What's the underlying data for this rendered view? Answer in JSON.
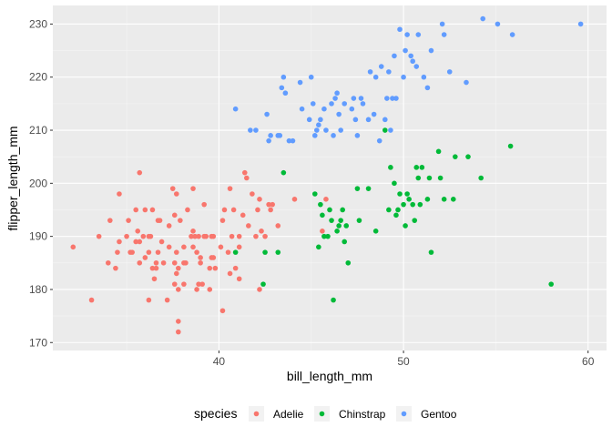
{
  "chart_data": {
    "type": "scatter",
    "xlabel": "bill_length_mm",
    "ylabel": "flipper_length_mm",
    "xlim": [
      31,
      61
    ],
    "ylim": [
      168.5,
      233.5
    ],
    "x_ticks": [
      40,
      50,
      60
    ],
    "y_ticks": [
      170,
      180,
      190,
      200,
      210,
      220,
      230
    ],
    "x_tick_labels": [
      "40",
      "50",
      "60"
    ],
    "y_tick_labels": [
      "170",
      "180",
      "190",
      "200",
      "210",
      "220",
      "230"
    ],
    "grid": true,
    "legend": {
      "title": "species",
      "position": "bottom"
    },
    "series": [
      {
        "name": "Adelie",
        "color": "#F8766D",
        "points": [
          [
            32.1,
            188
          ],
          [
            33.1,
            178
          ],
          [
            33.5,
            190
          ],
          [
            34.0,
            185
          ],
          [
            34.1,
            193
          ],
          [
            34.4,
            184
          ],
          [
            34.5,
            187
          ],
          [
            34.6,
            189
          ],
          [
            34.6,
            198
          ],
          [
            35.0,
            190
          ],
          [
            35.1,
            193
          ],
          [
            35.2,
            187
          ],
          [
            35.3,
            187
          ],
          [
            35.5,
            189
          ],
          [
            35.5,
            195
          ],
          [
            35.6,
            191
          ],
          [
            35.7,
            185
          ],
          [
            35.7,
            189
          ],
          [
            35.7,
            202
          ],
          [
            35.9,
            190
          ],
          [
            36.0,
            186
          ],
          [
            36.0,
            195
          ],
          [
            36.2,
            178
          ],
          [
            36.2,
            187
          ],
          [
            36.2,
            190
          ],
          [
            36.3,
            190
          ],
          [
            36.4,
            184
          ],
          [
            36.4,
            195
          ],
          [
            36.5,
            182
          ],
          [
            36.6,
            184
          ],
          [
            36.6,
            185
          ],
          [
            36.7,
            187
          ],
          [
            36.7,
            193
          ],
          [
            36.8,
            193
          ],
          [
            36.9,
            189
          ],
          [
            37.0,
            185
          ],
          [
            37.2,
            178
          ],
          [
            37.3,
            188
          ],
          [
            37.3,
            192
          ],
          [
            37.5,
            199
          ],
          [
            37.6,
            181
          ],
          [
            37.6,
            185
          ],
          [
            37.6,
            194
          ],
          [
            37.7,
            183
          ],
          [
            37.7,
            187
          ],
          [
            37.7,
            198
          ],
          [
            37.8,
            172
          ],
          [
            37.8,
            174
          ],
          [
            37.8,
            180
          ],
          [
            37.8,
            184
          ],
          [
            37.9,
            193
          ],
          [
            38.1,
            181
          ],
          [
            38.1,
            185
          ],
          [
            38.1,
            188
          ],
          [
            38.2,
            185
          ],
          [
            38.3,
            195
          ],
          [
            38.5,
            190
          ],
          [
            38.6,
            188
          ],
          [
            38.6,
            191
          ],
          [
            38.6,
            199
          ],
          [
            38.7,
            190
          ],
          [
            38.8,
            180
          ],
          [
            38.8,
            187
          ],
          [
            38.9,
            181
          ],
          [
            38.9,
            190
          ],
          [
            39.0,
            185
          ],
          [
            39.0,
            186
          ],
          [
            39.1,
            181
          ],
          [
            39.2,
            190
          ],
          [
            39.2,
            196
          ],
          [
            39.3,
            190
          ],
          [
            39.5,
            180
          ],
          [
            39.5,
            184
          ],
          [
            39.6,
            186
          ],
          [
            39.6,
            190
          ],
          [
            39.7,
            186
          ],
          [
            39.7,
            190
          ],
          [
            39.8,
            184
          ],
          [
            40.1,
            188
          ],
          [
            40.2,
            176
          ],
          [
            40.2,
            193
          ],
          [
            40.3,
            195
          ],
          [
            40.5,
            187
          ],
          [
            40.6,
            183
          ],
          [
            40.6,
            199
          ],
          [
            40.7,
            190
          ],
          [
            40.8,
            195
          ],
          [
            40.9,
            184
          ],
          [
            41.1,
            182
          ],
          [
            41.1,
            188
          ],
          [
            41.1,
            190
          ],
          [
            41.3,
            194
          ],
          [
            41.4,
            202
          ],
          [
            41.5,
            201
          ],
          [
            41.6,
            192
          ],
          [
            41.8,
            198
          ],
          [
            42.0,
            190
          ],
          [
            42.1,
            195
          ],
          [
            42.2,
            180
          ],
          [
            42.2,
            197
          ],
          [
            42.3,
            191
          ],
          [
            42.5,
            190
          ],
          [
            42.7,
            196
          ],
          [
            42.8,
            195
          ],
          [
            42.9,
            196
          ],
          [
            43.2,
            192
          ],
          [
            44.1,
            197
          ],
          [
            45.6,
            191
          ],
          [
            45.8,
            197
          ]
        ]
      },
      {
        "name": "Chinstrap",
        "color": "#00BA38",
        "points": [
          [
            40.9,
            187
          ],
          [
            42.4,
            181
          ],
          [
            42.5,
            187
          ],
          [
            43.2,
            187
          ],
          [
            43.5,
            202
          ],
          [
            45.2,
            198
          ],
          [
            45.4,
            188
          ],
          [
            45.5,
            196
          ],
          [
            45.6,
            194
          ],
          [
            45.7,
            190
          ],
          [
            45.9,
            190
          ],
          [
            46.0,
            195
          ],
          [
            46.1,
            193
          ],
          [
            46.2,
            178
          ],
          [
            46.4,
            191
          ],
          [
            46.5,
            192
          ],
          [
            46.6,
            193
          ],
          [
            46.7,
            195
          ],
          [
            46.8,
            189
          ],
          [
            46.9,
            192
          ],
          [
            47.0,
            185
          ],
          [
            47.5,
            199
          ],
          [
            47.6,
            193
          ],
          [
            48.1,
            199
          ],
          [
            48.5,
            191
          ],
          [
            49.0,
            210
          ],
          [
            49.2,
            195
          ],
          [
            49.3,
            203
          ],
          [
            49.5,
            200
          ],
          [
            49.6,
            194
          ],
          [
            49.7,
            195
          ],
          [
            49.8,
            198
          ],
          [
            50.0,
            196
          ],
          [
            50.1,
            192
          ],
          [
            50.2,
            198
          ],
          [
            50.3,
            197
          ],
          [
            50.5,
            196
          ],
          [
            50.6,
            193
          ],
          [
            50.7,
            203
          ],
          [
            50.8,
            201
          ],
          [
            50.9,
            196
          ],
          [
            51.0,
            203
          ],
          [
            51.3,
            197
          ],
          [
            51.4,
            201
          ],
          [
            51.5,
            187
          ],
          [
            51.9,
            206
          ],
          [
            52.0,
            201
          ],
          [
            52.2,
            197
          ],
          [
            52.7,
            197
          ],
          [
            52.8,
            205
          ],
          [
            53.5,
            205
          ],
          [
            54.2,
            201
          ],
          [
            55.8,
            207
          ],
          [
            58.0,
            181
          ]
        ]
      },
      {
        "name": "Gentoo",
        "color": "#619CFF",
        "points": [
          [
            40.9,
            214
          ],
          [
            41.7,
            210
          ],
          [
            42.0,
            210
          ],
          [
            42.6,
            213
          ],
          [
            42.7,
            208
          ],
          [
            42.8,
            209
          ],
          [
            43.2,
            209
          ],
          [
            43.3,
            209
          ],
          [
            43.4,
            218
          ],
          [
            43.5,
            220
          ],
          [
            43.6,
            217
          ],
          [
            43.8,
            208
          ],
          [
            44.0,
            208
          ],
          [
            44.4,
            219
          ],
          [
            44.5,
            214
          ],
          [
            44.9,
            212
          ],
          [
            45.0,
            220
          ],
          [
            45.1,
            215
          ],
          [
            45.2,
            209
          ],
          [
            45.3,
            210
          ],
          [
            45.4,
            211
          ],
          [
            45.5,
            212
          ],
          [
            45.7,
            214
          ],
          [
            45.8,
            210
          ],
          [
            46.1,
            215
          ],
          [
            46.2,
            209
          ],
          [
            46.3,
            216
          ],
          [
            46.4,
            217
          ],
          [
            46.5,
            213
          ],
          [
            46.6,
            210
          ],
          [
            46.8,
            215
          ],
          [
            47.2,
            214
          ],
          [
            47.3,
            216
          ],
          [
            47.4,
            212
          ],
          [
            47.5,
            209
          ],
          [
            47.7,
            216
          ],
          [
            47.8,
            215
          ],
          [
            48.1,
            212
          ],
          [
            48.2,
            221
          ],
          [
            48.4,
            213
          ],
          [
            48.5,
            220
          ],
          [
            48.7,
            208
          ],
          [
            48.8,
            222
          ],
          [
            49.0,
            212
          ],
          [
            49.1,
            216
          ],
          [
            49.2,
            221
          ],
          [
            49.3,
            210
          ],
          [
            49.4,
            216
          ],
          [
            49.5,
            224
          ],
          [
            49.6,
            216
          ],
          [
            49.8,
            229
          ],
          [
            50.0,
            220
          ],
          [
            50.1,
            225
          ],
          [
            50.2,
            228
          ],
          [
            50.4,
            224
          ],
          [
            50.5,
            223
          ],
          [
            50.7,
            222
          ],
          [
            50.8,
            228
          ],
          [
            51.1,
            220
          ],
          [
            51.3,
            218
          ],
          [
            51.5,
            225
          ],
          [
            52.1,
            230
          ],
          [
            52.2,
            228
          ],
          [
            52.5,
            221
          ],
          [
            53.4,
            219
          ],
          [
            54.3,
            231
          ],
          [
            55.1,
            230
          ],
          [
            55.9,
            228
          ],
          [
            59.6,
            230
          ]
        ]
      }
    ]
  }
}
